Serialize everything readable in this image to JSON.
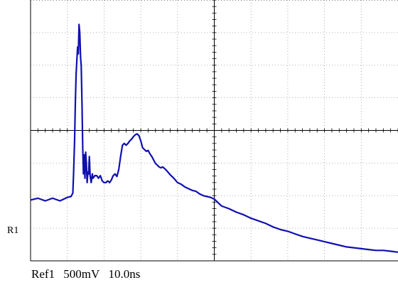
{
  "readout": {
    "channel": "Ref1",
    "volts_per_div": "500mV",
    "time_per_div": "10.0ns"
  },
  "ref_marker": "R1",
  "chart_data": {
    "type": "line",
    "title": "",
    "xlabel": "",
    "ylabel": "",
    "x_unit": "ns",
    "y_unit": "V",
    "xlim": [
      -50,
      50
    ],
    "ylim": [
      -1.0,
      2.0
    ],
    "grid": true,
    "trace_color": "#1010b0",
    "series": [
      {
        "x": [
          -50,
          -48,
          -46,
          -44,
          -42,
          -40,
          -39,
          -38.5,
          -38.3,
          -38,
          -37.8,
          -37.6,
          -37.4,
          -37.2,
          -37,
          -36.8,
          -36.6,
          -36.4,
          -36.2,
          -36,
          -35.8,
          -35.6,
          -35.4,
          -35.2,
          -35,
          -34.8,
          -34.6,
          -34.4,
          -34.2,
          -34,
          -33.8,
          -33.5,
          -33.2,
          -33,
          -32.5,
          -32,
          -31.5,
          -31,
          -30.5,
          -30,
          -29.5,
          -29,
          -28.5,
          -28,
          -27.5,
          -27,
          -26.5,
          -26,
          -25.5,
          -25,
          -24.5,
          -24,
          -23.5,
          -23,
          -22.5,
          -22,
          -21.5,
          -21,
          -20.5,
          -20,
          -19.5,
          -19,
          -18.5,
          -18,
          -17.5,
          -17,
          -16.5,
          -16,
          -15.5,
          -15,
          -14.5,
          -14,
          -13.5,
          -13,
          -12,
          -11,
          -10,
          -9,
          -8,
          -7,
          -6,
          -5,
          -4,
          -3,
          -2,
          -1,
          0,
          2,
          4,
          6,
          8,
          10,
          12,
          14,
          16,
          18,
          20,
          22,
          24,
          26,
          28,
          30,
          32,
          34,
          36,
          38,
          40,
          42,
          44,
          46,
          48,
          50
        ],
        "values": [
          -0.3,
          -0.28,
          -0.31,
          -0.28,
          -0.31,
          -0.27,
          -0.26,
          -0.22,
          0.0,
          0.4,
          0.85,
          1.15,
          1.3,
          1.46,
          1.38,
          1.72,
          1.62,
          1.35,
          1.24,
          0.8,
          0.3,
          0.0,
          0.22,
          -0.05,
          0.25,
          0.12,
          -0.1,
          0.02,
          0.0,
          0.2,
          -0.02,
          -0.1,
          0.0,
          -0.05,
          -0.02,
          -0.02,
          -0.05,
          -0.02,
          -0.08,
          -0.1,
          -0.1,
          -0.08,
          -0.1,
          -0.07,
          -0.02,
          0.0,
          -0.03,
          0.05,
          0.2,
          0.33,
          0.35,
          0.33,
          0.35,
          0.38,
          0.4,
          0.43,
          0.45,
          0.46,
          0.44,
          0.38,
          0.3,
          0.28,
          0.26,
          0.27,
          0.23,
          0.2,
          0.16,
          0.12,
          0.1,
          0.08,
          0.07,
          0.08,
          0.06,
          0.04,
          -0.01,
          -0.05,
          -0.1,
          -0.12,
          -0.15,
          -0.17,
          -0.19,
          -0.2,
          -0.23,
          -0.25,
          -0.26,
          -0.27,
          -0.29,
          -0.37,
          -0.4,
          -0.44,
          -0.47,
          -0.51,
          -0.54,
          -0.57,
          -0.61,
          -0.64,
          -0.66,
          -0.69,
          -0.72,
          -0.74,
          -0.76,
          -0.78,
          -0.8,
          -0.82,
          -0.84,
          -0.85,
          -0.86,
          -0.87,
          -0.88,
          -0.88,
          -0.89,
          -0.9
        ]
      }
    ]
  }
}
